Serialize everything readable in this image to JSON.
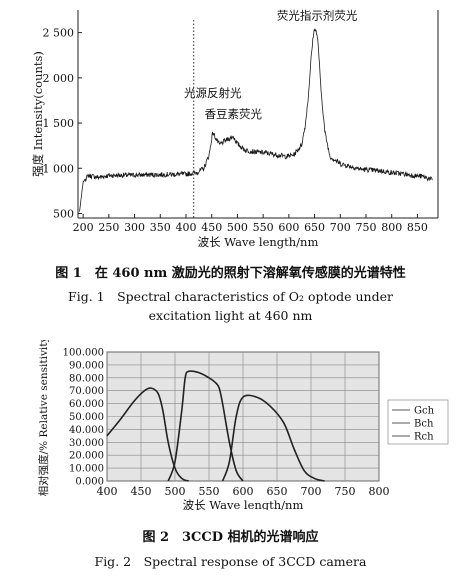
{
  "figure1": {
    "caption_cn": "图 1　在 460 nm 激励光的照射下溶解氧传感膜的光谱特性",
    "caption_en_line1": "Fig. 1　Spectral characteristics of O₂ optode under",
    "caption_en_line2": "excitation light at 460 nm",
    "chart_data": {
      "type": "line",
      "xlabel": "波长 Wave length/nm",
      "ylabel": "强度 Intensity(counts)",
      "xlim": [
        190,
        890
      ],
      "ylim": [
        450,
        2750
      ],
      "x_ticks": [
        "200",
        "250",
        "300",
        "350",
        "400",
        "450",
        "500",
        "550",
        "600",
        "650",
        "700",
        "750",
        "800",
        "850"
      ],
      "y_ticks": [
        "500",
        "1 000",
        "1 500",
        "2 000",
        "2 500"
      ],
      "grid": false,
      "marker_line_x": 415,
      "annotations": [
        {
          "text": "荧光指示剂荧光",
          "x": 655,
          "y": 2580
        },
        {
          "text": "光源反射光",
          "x": 452,
          "y": 1720
        },
        {
          "text": "香豆素荧光",
          "x": 492,
          "y": 1490
        }
      ],
      "series": [
        {
          "x": [
            193,
            200,
            210,
            230,
            250,
            300,
            350,
            400,
            420,
            435,
            445,
            452,
            458,
            465,
            475,
            485,
            492,
            500,
            515,
            535,
            555,
            575,
            595,
            610,
            625,
            632,
            638,
            643,
            648,
            652,
            657,
            662,
            670,
            680,
            700,
            720,
            740,
            760,
            780,
            800,
            820,
            840,
            860,
            880
          ],
          "values": [
            520,
            850,
            920,
            900,
            920,
            925,
            930,
            935,
            950,
            1000,
            1150,
            1400,
            1330,
            1260,
            1300,
            1330,
            1350,
            1270,
            1200,
            1180,
            1170,
            1150,
            1130,
            1150,
            1260,
            1480,
            1800,
            2200,
            2500,
            2550,
            2380,
            1900,
            1400,
            1130,
            1050,
            1020,
            990,
            980,
            970,
            950,
            940,
            920,
            910,
            870
          ]
        }
      ]
    }
  },
  "figure2": {
    "caption_cn": "图 2　3CCD 相机的光谱响应",
    "caption_en": "Fig. 2　Spectral response of 3CCD camera",
    "chart_data": {
      "type": "line",
      "xlabel": "波长 Wave length/nm",
      "ylabel": "相对强度/% Relative sensitivity",
      "xlim": [
        400,
        800
      ],
      "ylim": [
        0,
        100
      ],
      "x_ticks": [
        "400",
        "450",
        "500",
        "550",
        "600",
        "650",
        "700",
        "750",
        "800"
      ],
      "y_ticks": [
        "0.000",
        "10.000",
        "20.000",
        "30.000",
        "40.000",
        "50.000",
        "60.000",
        "70.000",
        "80.000",
        "90.000",
        "100.000"
      ],
      "grid": true,
      "legend_position": "right",
      "series": [
        {
          "name": "Gch",
          "x": [
            400,
            420,
            440,
            455,
            465,
            475,
            482,
            490,
            500,
            510,
            520
          ],
          "values": [
            35,
            48,
            62,
            70,
            72,
            68,
            55,
            30,
            10,
            2,
            0
          ]
        },
        {
          "name": "Bch",
          "x": [
            490,
            500,
            510,
            515,
            520,
            535,
            550,
            560,
            565,
            570,
            580,
            590,
            600
          ],
          "values": [
            0,
            15,
            55,
            80,
            85,
            84,
            80,
            76,
            72,
            60,
            30,
            8,
            0
          ]
        },
        {
          "name": "Rch",
          "x": [
            570,
            580,
            590,
            600,
            620,
            640,
            660,
            675,
            690,
            705,
            720
          ],
          "values": [
            0,
            15,
            50,
            65,
            65,
            58,
            45,
            25,
            8,
            2,
            0
          ]
        }
      ]
    }
  }
}
